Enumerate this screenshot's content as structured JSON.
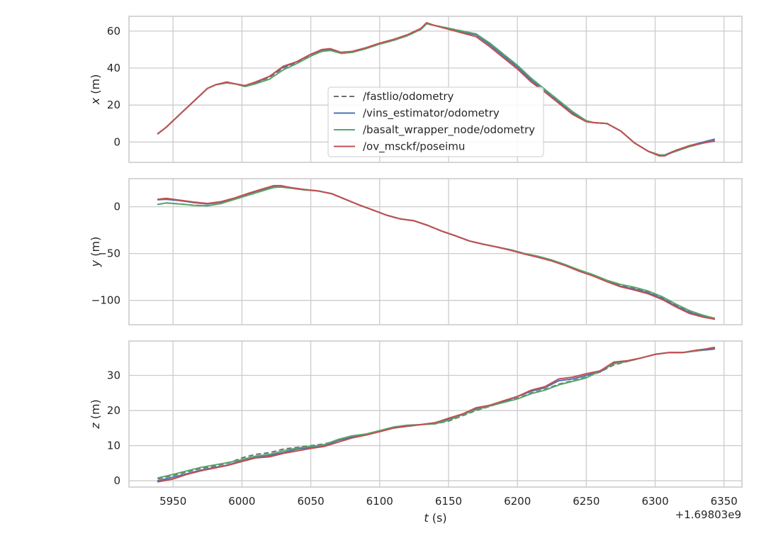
{
  "chart_data": {
    "type": "line",
    "xlabel": "t (s)",
    "x_offset_label": "+1.69803e9",
    "xlim": [
      5918,
      6363
    ],
    "xticks": [
      "5950",
      "6000",
      "6050",
      "6100",
      "6150",
      "6200",
      "6250",
      "6300",
      "6350"
    ],
    "legend": {
      "placement": "upper-center (top subplot)",
      "entries": [
        "/fastlio/odometry",
        "/vins_estimator/odometry",
        "/basalt_wrapper_node/odometry",
        "/ov_msckf/poseimu"
      ]
    },
    "series_styles": [
      {
        "name": "/fastlio/odometry",
        "color": "#707070",
        "dash": "7,4"
      },
      {
        "name": "/vins_estimator/odometry",
        "color": "#4c72b0",
        "dash": ""
      },
      {
        "name": "/basalt_wrapper_node/odometry",
        "color": "#55a868",
        "dash": ""
      },
      {
        "name": "/ov_msckf/poseimu",
        "color": "#c44e52",
        "dash": ""
      }
    ],
    "subplots": [
      {
        "ylabel": "x (m)",
        "ylabel_var": "x",
        "ylabel_unit": " (m)",
        "ylim": [
          -11,
          68
        ],
        "yticks": [
          "0",
          "20",
          "40",
          "60"
        ],
        "grid": true,
        "t": [
          5939,
          5945,
          5955,
          5965,
          5975,
          5981,
          5989,
          5995,
          6002,
          6010,
          6020,
          6030,
          6040,
          6050,
          6058,
          6064,
          6072,
          6080,
          6090,
          6100,
          6110,
          6120,
          6130,
          6134,
          6140,
          6150,
          6160,
          6170,
          6180,
          6190,
          6200,
          6210,
          6220,
          6230,
          6240,
          6250,
          6255,
          6265,
          6275,
          6285,
          6295,
          6303,
          6307,
          6315,
          6325,
          6335,
          6343
        ],
        "series": [
          {
            "name": "/fastlio/odometry",
            "values": [
              4.5,
              8,
              15,
              22,
              29,
              31,
              32,
              31.5,
              30.5,
              32,
              35,
              40,
              43,
              47,
              49,
              50,
              48,
              48.5,
              50.5,
              53,
              55,
              57.5,
              61,
              64,
              63,
              61.5,
              60,
              58.5,
              53,
              47,
              41,
              34,
              28,
              22,
              16,
              11.5,
              10.5,
              10,
              6,
              -0.5,
              -5,
              -7,
              -7,
              -5,
              -2.5,
              -0.5,
              1
            ]
          },
          {
            "name": "/vins_estimator/odometry",
            "values": [
              4.5,
              8,
              15,
              22,
              29,
              31,
              32,
              31.5,
              30.5,
              32,
              35.5,
              40.5,
              43.5,
              47.5,
              49.5,
              50,
              48,
              48.5,
              50.5,
              53,
              55,
              57.5,
              61,
              64,
              63,
              61.5,
              59.5,
              58,
              52.5,
              46.5,
              40.5,
              33.5,
              27.5,
              21.5,
              15.5,
              11.5,
              10.5,
              10,
              6,
              -0.5,
              -5,
              -7,
              -7,
              -4.5,
              -2,
              0,
              1.5
            ]
          },
          {
            "name": "/basalt_wrapper_node/odometry",
            "values": [
              4.5,
              8,
              15,
              22,
              29,
              31,
              32,
              31.5,
              30,
              31.5,
              34,
              39,
              42.5,
              46.5,
              49,
              49.5,
              48,
              48.5,
              50.5,
              53,
              55,
              57.5,
              61,
              64,
              63,
              61.5,
              60,
              58.5,
              53.5,
              47.5,
              41.5,
              34.5,
              28.5,
              22.5,
              16.5,
              11.5,
              10.5,
              10,
              6,
              -0.5,
              -5,
              -7,
              -7,
              -5,
              -2.5,
              -0.5,
              0.5
            ]
          },
          {
            "name": "/ov_msckf/poseimu",
            "values": [
              4.5,
              8,
              15,
              22,
              29,
              31,
              32.5,
              31.5,
              30.5,
              32.5,
              35.5,
              41,
              43.5,
              47.5,
              50,
              50.5,
              48.5,
              49,
              51,
              53.5,
              55.5,
              58,
              61.5,
              64.5,
              63,
              61,
              59,
              57,
              51.5,
              45.5,
              39.5,
              32.5,
              27,
              21,
              15,
              11,
              10.5,
              10,
              6,
              -0.5,
              -5,
              -7.5,
              -7.5,
              -4.5,
              -2,
              -0.5,
              0.5
            ]
          }
        ]
      },
      {
        "ylabel": "y (m)",
        "ylabel_var": "y",
        "ylabel_unit": " (m)",
        "ylim": [
          -126,
          30
        ],
        "yticks": [
          "0",
          "−50",
          "−100"
        ],
        "ytick_values": [
          0,
          -50,
          -100
        ],
        "grid": true,
        "t": [
          5939,
          5945,
          5955,
          5965,
          5975,
          5985,
          5995,
          6005,
          6015,
          6023,
          6028,
          6035,
          6045,
          6055,
          6065,
          6075,
          6085,
          6095,
          6105,
          6115,
          6125,
          6135,
          6145,
          6155,
          6165,
          6175,
          6185,
          6195,
          6205,
          6215,
          6225,
          6235,
          6245,
          6255,
          6265,
          6275,
          6285,
          6295,
          6305,
          6315,
          6325,
          6335,
          6343
        ],
        "series": [
          {
            "name": "/fastlio/odometry",
            "values": [
              2.5,
              4,
              3,
              1.5,
              1,
              3.5,
              8.5,
              13,
              17.5,
              21,
              21.5,
              20,
              18,
              17,
              14,
              8,
              2,
              -3.5,
              -9,
              -13,
              -15,
              -20,
              -26,
              -31,
              -36.5,
              -40,
              -43,
              -46,
              -50,
              -53,
              -57,
              -62,
              -68,
              -73,
              -79,
              -84,
              -87,
              -91,
              -97,
              -105,
              -112,
              -116,
              -119
            ]
          },
          {
            "name": "/vins_estimator/odometry",
            "values": [
              7.5,
              8,
              6.5,
              4.5,
              3,
              5,
              9,
              14,
              18.5,
              22,
              22.5,
              20.5,
              18.5,
              17,
              14,
              8,
              2,
              -3.5,
              -9,
              -13,
              -15,
              -20,
              -26,
              -31,
              -36.5,
              -40,
              -43,
              -46,
              -50,
              -53,
              -57,
              -62,
              -68,
              -73,
              -79.5,
              -85,
              -88,
              -92,
              -98,
              -106,
              -113,
              -117,
              -120
            ]
          },
          {
            "name": "/basalt_wrapper_node/odometry",
            "values": [
              2.5,
              4,
              3,
              1.5,
              1,
              3.5,
              8,
              12.5,
              17,
              20.5,
              21,
              20,
              18,
              17,
              14,
              8,
              2,
              -3.5,
              -9,
              -13,
              -15,
              -20,
              -26,
              -31,
              -36.5,
              -40,
              -43,
              -46,
              -50,
              -53,
              -57,
              -62,
              -67.5,
              -72.5,
              -78.5,
              -83,
              -86,
              -90,
              -96,
              -104,
              -111,
              -116,
              -119
            ]
          },
          {
            "name": "/ov_msckf/poseimu",
            "values": [
              8,
              9,
              7,
              5,
              3.5,
              5.5,
              9.5,
              14.5,
              19,
              22.5,
              22.5,
              20.5,
              18.5,
              17,
              14,
              8,
              2,
              -3.5,
              -9,
              -13,
              -15,
              -20,
              -26,
              -31,
              -36.5,
              -40,
              -43,
              -46.5,
              -50.5,
              -54,
              -58,
              -63,
              -69,
              -74,
              -80,
              -85.5,
              -89,
              -93,
              -99,
              -107,
              -114,
              -118,
              -120
            ]
          }
        ]
      },
      {
        "ylabel": "z (m)",
        "ylabel_var": "z",
        "ylabel_unit": " (m)",
        "ylim": [
          -1.8,
          39.8
        ],
        "yticks": [
          "0",
          "10",
          "20",
          "30"
        ],
        "ytick_values": [
          0,
          10,
          20,
          30
        ],
        "grid": true,
        "t": [
          5939,
          5950,
          5960,
          5970,
          5980,
          5990,
          6000,
          6010,
          6020,
          6030,
          6040,
          6050,
          6060,
          6070,
          6080,
          6090,
          6100,
          6110,
          6120,
          6130,
          6140,
          6150,
          6160,
          6170,
          6180,
          6190,
          6200,
          6210,
          6220,
          6230,
          6240,
          6250,
          6260,
          6270,
          6280,
          6290,
          6300,
          6310,
          6320,
          6330,
          6343
        ],
        "series": [
          {
            "name": "/fastlio/odometry",
            "values": [
              0.5,
              1.5,
              2.5,
              3.5,
              4.2,
              5,
              6.5,
              7.5,
              8,
              9,
              9.5,
              10,
              10.5,
              11.5,
              12.5,
              13,
              14,
              15,
              15.5,
              16,
              16.2,
              17,
              18.5,
              20,
              21.2,
              22.5,
              23.5,
              25,
              26,
              27.5,
              28.5,
              29.5,
              31,
              33,
              34,
              35,
              36,
              36.5,
              36.5,
              37,
              38
            ]
          },
          {
            "name": "/vins_estimator/odometry",
            "values": [
              0,
              1,
              2,
              3,
              3.8,
              4.5,
              5.8,
              6.8,
              7.2,
              8,
              9,
              9.5,
              10,
              11.5,
              12.5,
              13.2,
              14,
              15,
              15.5,
              16,
              16.5,
              17.5,
              19,
              20.5,
              21.5,
              22.5,
              24,
              25.5,
              26.5,
              28.5,
              29,
              30,
              31,
              33.5,
              34,
              35,
              36,
              36.5,
              36.5,
              37,
              37.5
            ]
          },
          {
            "name": "/basalt_wrapper_node/odometry",
            "values": [
              0.8,
              1.8,
              2.8,
              3.8,
              4.5,
              5.2,
              6,
              7,
              7.5,
              8.5,
              9.3,
              9.8,
              10.3,
              11.8,
              12.8,
              13.3,
              14.3,
              15.3,
              15.8,
              16,
              16.2,
              17.2,
              18.8,
              20.2,
              21.3,
              22.3,
              23.3,
              24.8,
              25.8,
              27.3,
              28.3,
              29.3,
              31.3,
              33.3,
              34,
              35,
              36,
              36.5,
              36.5,
              37,
              38
            ]
          },
          {
            "name": "/ov_msckf/poseimu",
            "values": [
              -0.3,
              0.5,
              1.8,
              2.8,
              3.6,
              4.4,
              5.5,
              6.5,
              6.8,
              7.8,
              8.5,
              9.2,
              9.8,
              11,
              12.2,
              13,
              14,
              15,
              15.6,
              16,
              16.5,
              17.8,
              19,
              20.8,
              21.5,
              22.8,
              24,
              25.8,
              26.8,
              29,
              29.5,
              30.5,
              31.3,
              33.8,
              34.2,
              35,
              36,
              36.5,
              36.5,
              37.2,
              37.8
            ]
          }
        ]
      }
    ]
  }
}
